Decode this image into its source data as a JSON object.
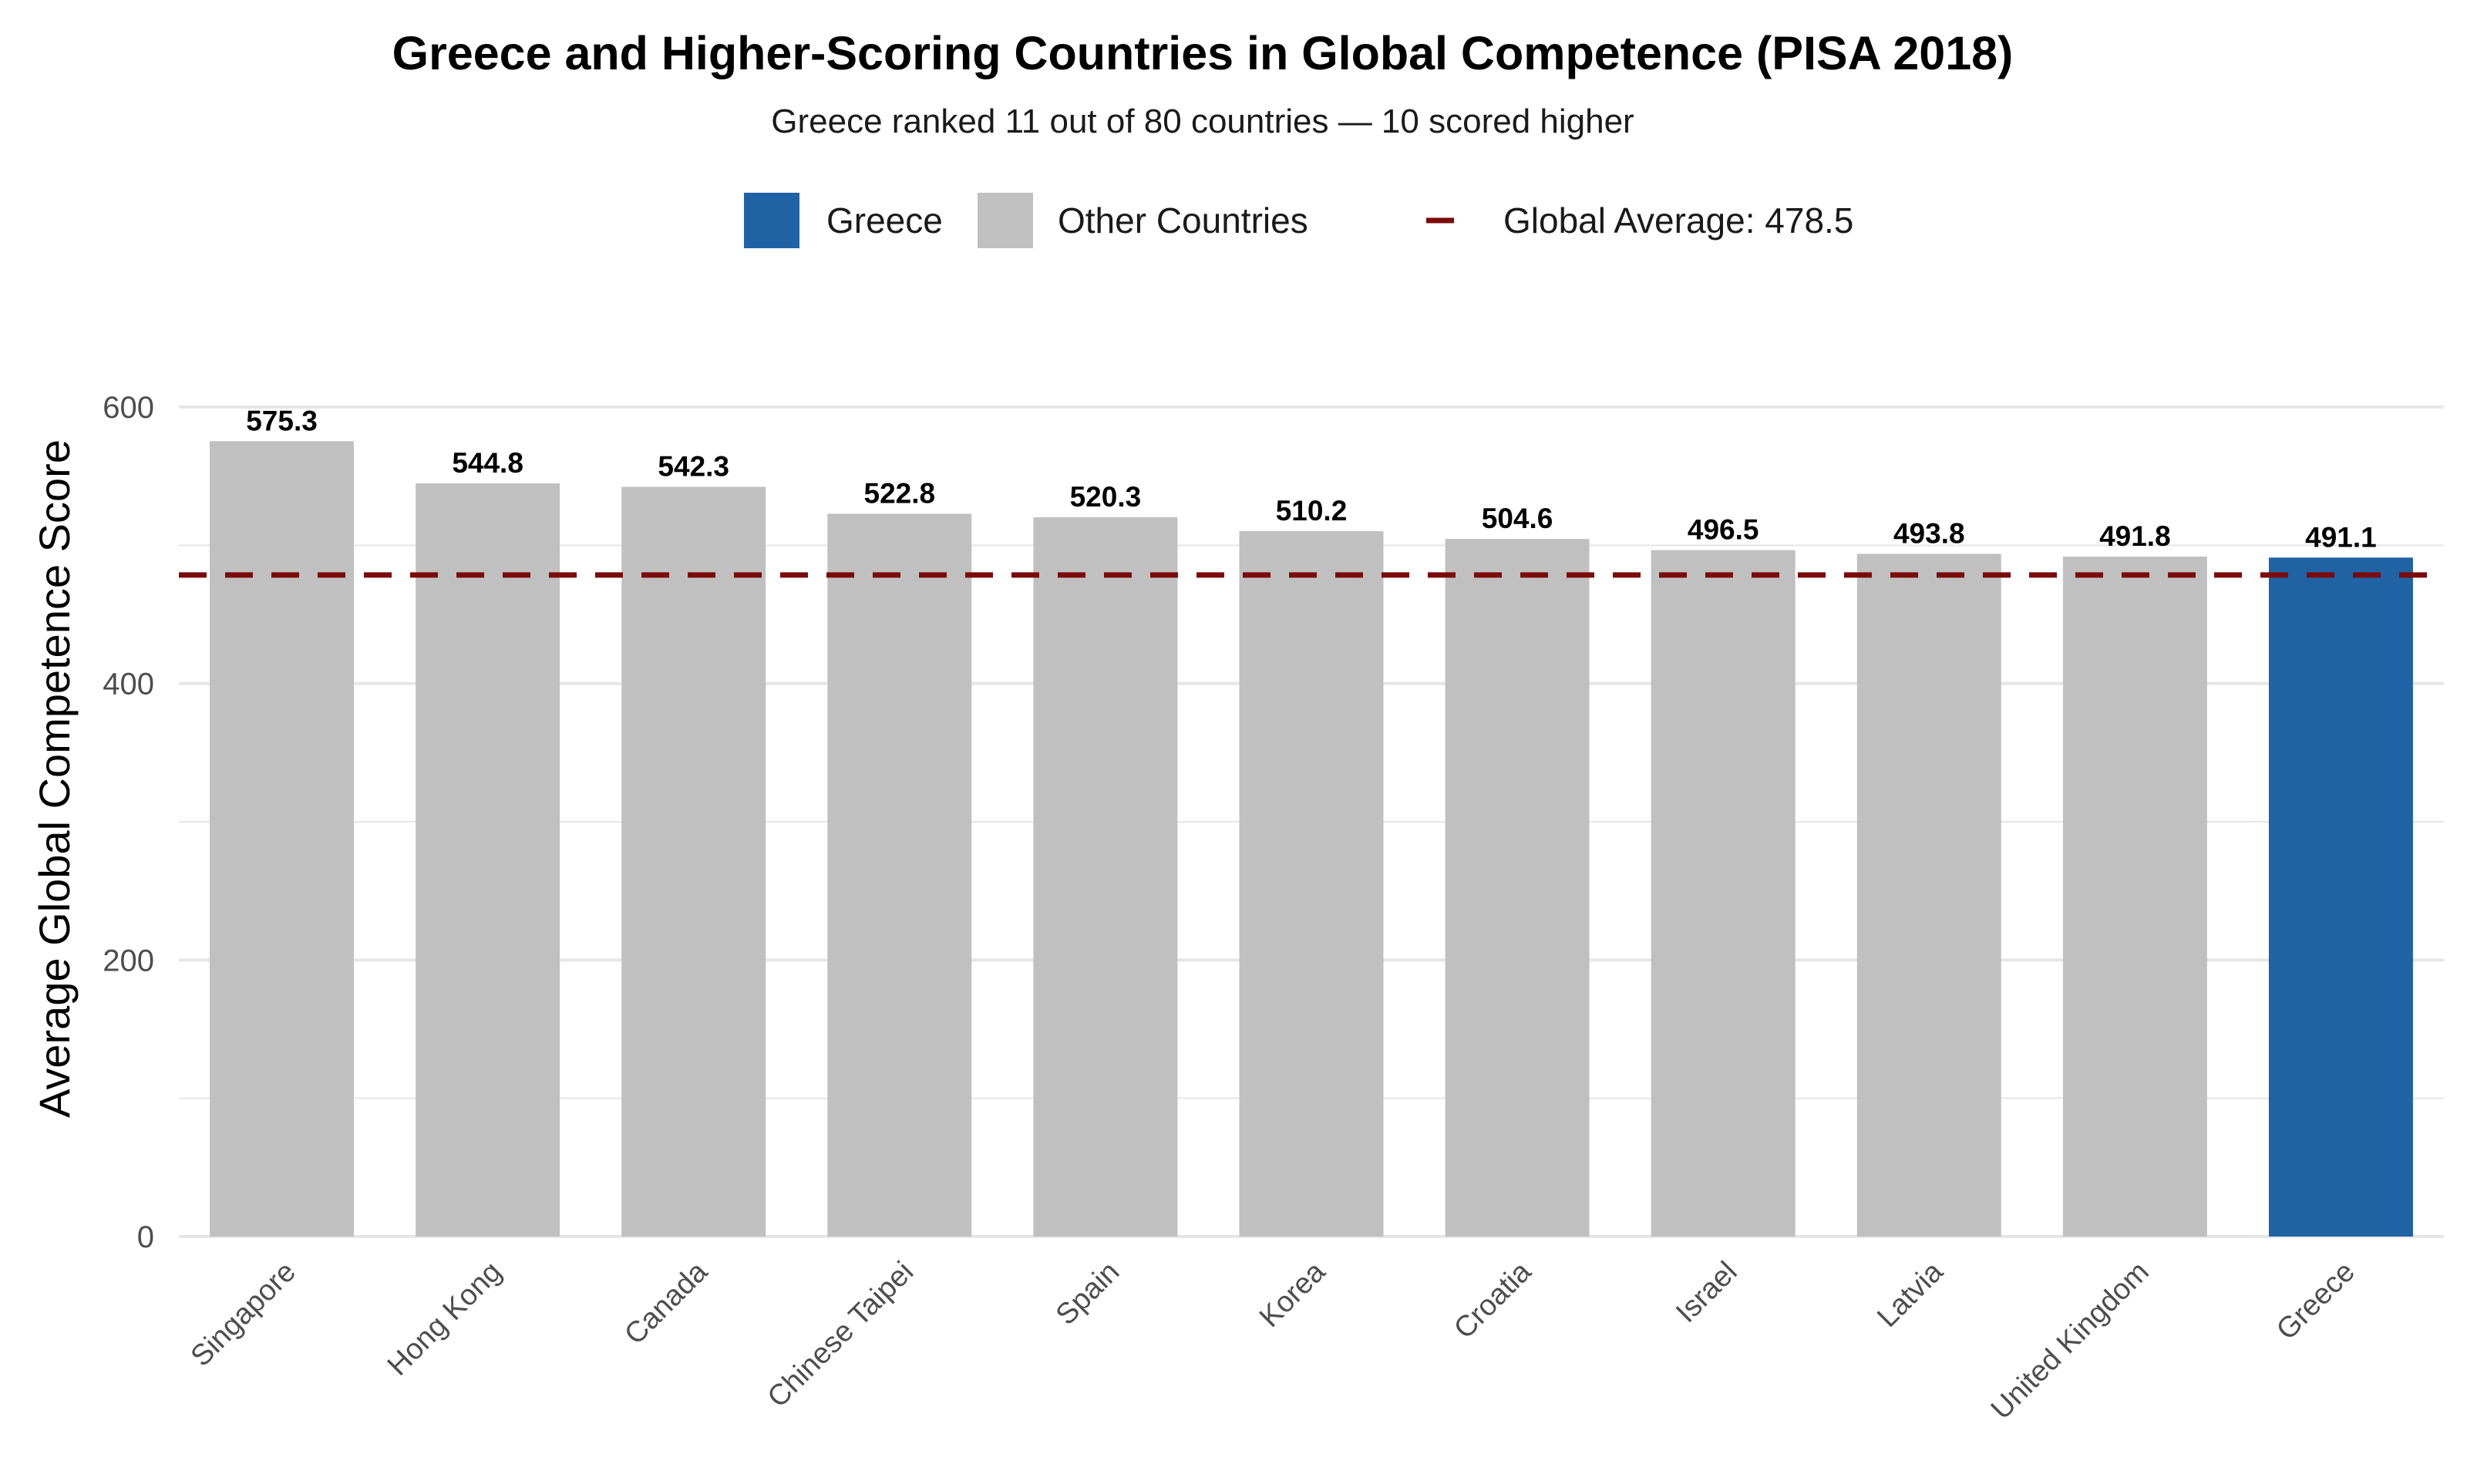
{
  "chart_data": {
    "type": "bar",
    "title": "Greece and Higher-Scoring Countries in Global Competence (PISA 2018)",
    "subtitle": "Greece ranked 11 out of 80 countries — 10 scored higher",
    "xlabel": "",
    "ylabel": "Average Global Competence Score",
    "categories": [
      "Singapore",
      "Hong Kong",
      "Canada",
      "Chinese Taipei",
      "Spain",
      "Korea",
      "Croatia",
      "Israel",
      "Latvia",
      "United Kingdom",
      "Greece"
    ],
    "values": [
      575.3,
      544.8,
      542.3,
      522.8,
      520.3,
      510.2,
      504.6,
      496.5,
      493.8,
      491.8,
      491.1
    ],
    "value_labels": [
      "575.3",
      "544.8",
      "542.3",
      "522.8",
      "520.3",
      "510.2",
      "504.6",
      "496.5",
      "493.8",
      "491.8",
      "491.1"
    ],
    "highlight": [
      "Other Countries",
      "Other Countries",
      "Other Countries",
      "Other Countries",
      "Other Countries",
      "Other Countries",
      "Other Countries",
      "Other Countries",
      "Other Countries",
      "Other Countries",
      "Greece"
    ],
    "ylim": [
      0,
      600
    ],
    "y_ticks": [
      0,
      200,
      400,
      600
    ],
    "y_tick_labels": [
      "0",
      "200",
      "400",
      "600"
    ],
    "grid": true,
    "legend_placement": "top",
    "legend": [
      {
        "label": "Greece",
        "kind": "fill",
        "color": "#1f63a5"
      },
      {
        "label": "Other Countries",
        "kind": "fill",
        "color": "#c0c0c0"
      },
      {
        "label": "Global Average: 478.5",
        "kind": "dashed-line",
        "color": "#7b0a0a"
      }
    ],
    "reference_line": {
      "value": 478.5,
      "style": "dashed",
      "color": "#7b0a0a"
    },
    "colors": {
      "greece": "#1f63a5",
      "other": "#c0c0c0",
      "average_line": "#7b0a0a",
      "grid": "#e6e6e6"
    }
  }
}
